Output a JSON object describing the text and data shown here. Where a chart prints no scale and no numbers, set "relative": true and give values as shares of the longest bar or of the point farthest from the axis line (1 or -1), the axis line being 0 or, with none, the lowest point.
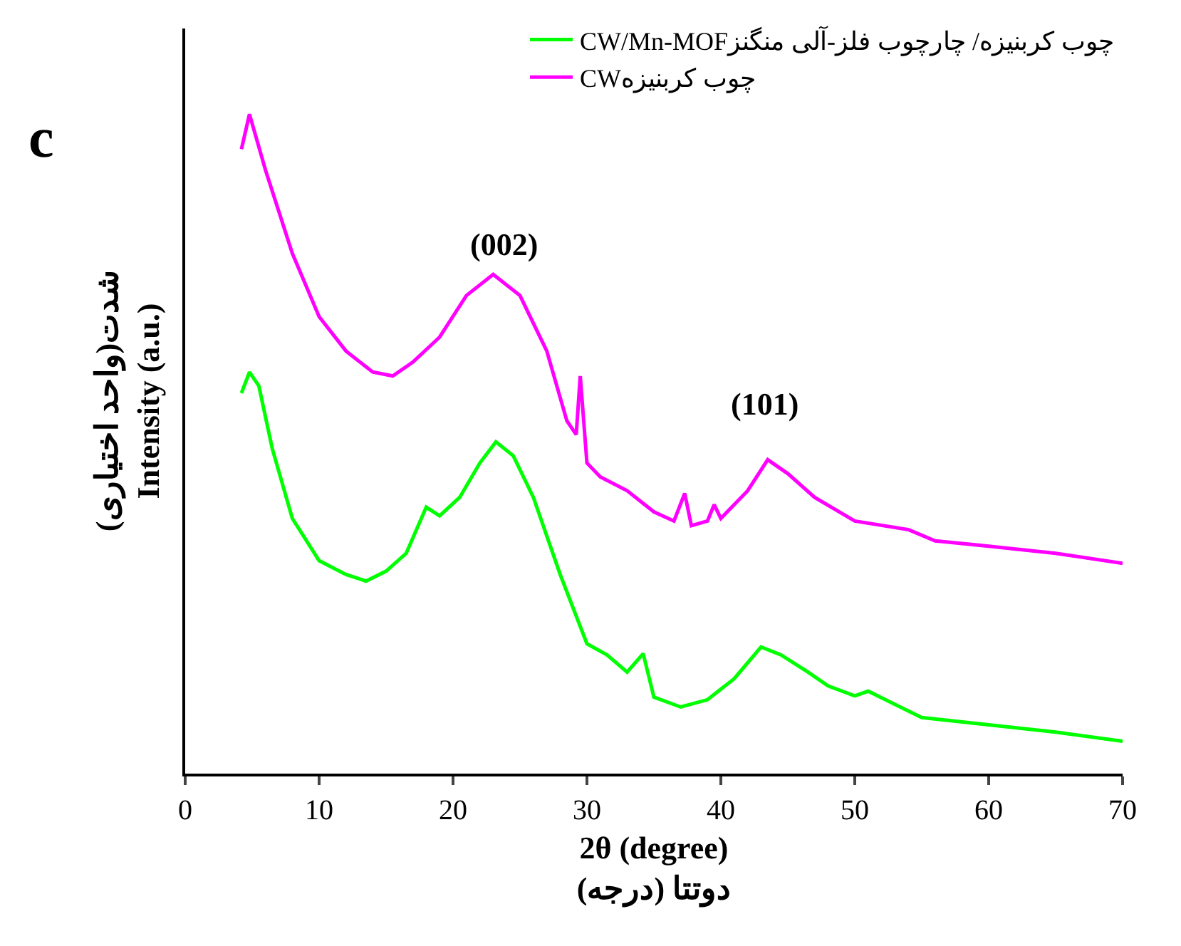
{
  "chart_data": {
    "type": "line",
    "relative": true,
    "xlabel": "2θ (degree)\nدوتتا (درجه)",
    "ylabel": "شدت(واحد اختیاری)\nIntensity (a.u.)",
    "xlim": [
      0,
      70
    ],
    "xticks": [
      0,
      10,
      20,
      30,
      40,
      50,
      60,
      70
    ],
    "grid": false,
    "legend": "top right",
    "marker": "none",
    "line_style": "solid",
    "annotations": [
      "c",
      "(002)",
      "(101)"
    ],
    "series": [
      {
        "name": "CW/Mn-MOFچوب کربنیزه/ چارچوب فلز-آلی منگنز",
        "color": "#00ff00",
        "x": [
          4.2,
          4.8,
          5.5,
          6.5,
          8,
          10,
          12,
          13.5,
          15,
          16.5,
          18,
          19,
          20.5,
          22,
          23.2,
          24.5,
          26,
          28,
          30,
          31.5,
          33,
          34.2,
          35,
          37,
          39,
          41,
          43,
          44.5,
          46.5,
          48,
          50,
          51,
          55,
          60,
          65,
          70
        ],
        "values": [
          0.577,
          0.609,
          0.588,
          0.493,
          0.387,
          0.323,
          0.302,
          0.292,
          0.307,
          0.334,
          0.404,
          0.391,
          0.419,
          0.471,
          0.503,
          0.482,
          0.419,
          0.302,
          0.197,
          0.18,
          0.154,
          0.182,
          0.116,
          0.101,
          0.112,
          0.144,
          0.192,
          0.18,
          0.154,
          0.133,
          0.118,
          0.125,
          0.085,
          0.074,
          0.063,
          0.049
        ]
      },
      {
        "name": "CWچوب کربنیزه",
        "color": "#ff00ff",
        "x": [
          4.2,
          4.8,
          6,
          8,
          10,
          12,
          14,
          15.5,
          17,
          19,
          21,
          23,
          25,
          27,
          28.5,
          29.2,
          29.5,
          30,
          31,
          33,
          35,
          36.5,
          37.3,
          37.8,
          39,
          39.5,
          40,
          42,
          43.5,
          45,
          47,
          50,
          54,
          56,
          60,
          65,
          70
        ],
        "values": [
          0.947,
          1.0,
          0.915,
          0.789,
          0.693,
          0.641,
          0.609,
          0.603,
          0.624,
          0.662,
          0.725,
          0.757,
          0.725,
          0.641,
          0.535,
          0.514,
          0.603,
          0.471,
          0.45,
          0.429,
          0.397,
          0.383,
          0.425,
          0.376,
          0.383,
          0.408,
          0.387,
          0.429,
          0.476,
          0.455,
          0.419,
          0.383,
          0.37,
          0.353,
          0.345,
          0.334,
          0.319
        ]
      }
    ]
  }
}
